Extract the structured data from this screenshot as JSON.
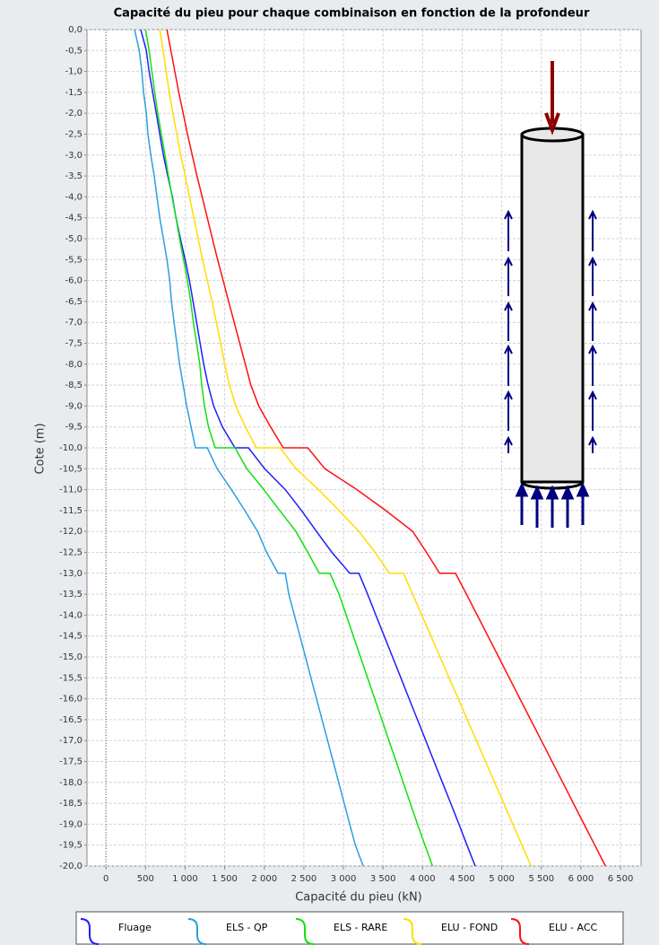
{
  "chart_data": {
    "type": "line",
    "title": "Capacité du pieu pour chaque combinaison en fonction de la profondeur",
    "xlabel": "Capacité du pieu (kN)",
    "ylabel": "Cote (m)",
    "y": [
      0,
      -0.5,
      -1,
      -1.5,
      -2,
      -2.5,
      -3,
      -3.5,
      -4,
      -4.5,
      -5,
      -5.5,
      -6,
      -6.5,
      -7,
      -7.5,
      -8,
      -8.5,
      -9,
      -9.5,
      -10,
      -10,
      -10.5,
      -11,
      -11.5,
      -12,
      -12.5,
      -13,
      -13,
      -13.5,
      -14,
      -14.5,
      -15,
      -15.5,
      -16,
      -16.5,
      -17,
      -17.5,
      -18,
      -18.5,
      -19,
      -19.5,
      -20
    ],
    "series": [
      {
        "name": "Fluage",
        "color": "#1f1fff",
        "values": [
          440,
          510,
          545,
          590,
          635,
          680,
          725,
          780,
          840,
          885,
          940,
          1000,
          1055,
          1100,
          1145,
          1190,
          1235,
          1290,
          1360,
          1470,
          1630,
          1800,
          2005,
          2265,
          2470,
          2660,
          2855,
          3080,
          3195,
          3305,
          3410,
          3515,
          3620,
          3725,
          3830,
          3935,
          4040,
          4145,
          4250,
          4355,
          4460,
          4560,
          4665
        ]
      },
      {
        "name": "ELS - QP",
        "color": "#2a9fe0",
        "values": [
          362,
          420,
          453,
          475,
          510,
          530,
          566,
          610,
          645,
          680,
          725,
          770,
          805,
          827,
          860,
          895,
          930,
          975,
          1020,
          1075,
          1130,
          1280,
          1405,
          1585,
          1755,
          1915,
          2030,
          2175,
          2265,
          2310,
          2380,
          2450,
          2520,
          2590,
          2660,
          2730,
          2800,
          2870,
          2940,
          3010,
          3080,
          3150,
          3250
        ]
      },
      {
        "name": "ELS - RARE",
        "color": "#11e011",
        "values": [
          500,
          545,
          580,
          615,
          655,
          700,
          745,
          790,
          835,
          885,
          930,
          980,
          1030,
          1070,
          1105,
          1145,
          1185,
          1210,
          1245,
          1295,
          1380,
          1630,
          1780,
          1995,
          2195,
          2400,
          2550,
          2695,
          2830,
          2945,
          3035,
          3125,
          3215,
          3305,
          3395,
          3485,
          3575,
          3665,
          3755,
          3845,
          3935,
          4030,
          4125
        ]
      },
      {
        "name": "ELU - FOND",
        "color": "#ffdd00",
        "values": [
          680,
          720,
          760,
          800,
          845,
          895,
          945,
          1000,
          1055,
          1110,
          1165,
          1220,
          1280,
          1340,
          1395,
          1450,
          1500,
          1560,
          1640,
          1760,
          1900,
          2200,
          2400,
          2685,
          2945,
          3195,
          3400,
          3580,
          3760,
          3875,
          3990,
          4105,
          4220,
          4335,
          4450,
          4565,
          4680,
          4795,
          4910,
          5025,
          5140,
          5255,
          5370
        ]
      },
      {
        "name": "ELU - ACC",
        "color": "#ff1010",
        "values": [
          770,
          820,
          870,
          920,
          975,
          1030,
          1090,
          1150,
          1215,
          1280,
          1345,
          1410,
          1480,
          1550,
          1620,
          1690,
          1760,
          1830,
          1930,
          2080,
          2240,
          2550,
          2765,
          3170,
          3535,
          3875,
          4050,
          4215,
          4415,
          4555,
          4690,
          4825,
          4960,
          5095,
          5230,
          5365,
          5500,
          5635,
          5770,
          5905,
          6040,
          6175,
          6310
        ]
      }
    ],
    "xlim": [
      -240,
      6760
    ],
    "ylim": [
      -20,
      0
    ],
    "xticks": [
      0,
      500,
      {
        "value": 1000,
        "label": "1 000"
      },
      {
        "value": 1500,
        "label": "1 500"
      },
      {
        "value": 2000,
        "label": "2 000"
      },
      {
        "value": 2500,
        "label": "2 500"
      },
      {
        "value": 3000,
        "label": "3 000"
      },
      {
        "value": 3500,
        "label": "3 500"
      },
      {
        "value": 4000,
        "label": "4 000"
      },
      {
        "value": 4500,
        "label": "4 500"
      },
      {
        "value": 5000,
        "label": "5 000"
      },
      {
        "value": 5500,
        "label": "5 500"
      },
      {
        "value": 6000,
        "label": "6 000"
      },
      {
        "value": 6500,
        "label": "6 500"
      }
    ],
    "yticks": [
      {
        "value": 0,
        "label": "0,0"
      },
      {
        "value": -0.5,
        "label": "-0,5"
      },
      {
        "value": -1,
        "label": "-1,0"
      },
      {
        "value": -1.5,
        "label": "-1,5"
      },
      {
        "value": -2,
        "label": "-2,0"
      },
      {
        "value": -2.5,
        "label": "-2,5"
      },
      {
        "value": -3,
        "label": "-3,0"
      },
      {
        "value": -3.5,
        "label": "-3,5"
      },
      {
        "value": -4,
        "label": "-4,0"
      },
      {
        "value": -4.5,
        "label": "-4,5"
      },
      {
        "value": -5,
        "label": "-5,0"
      },
      {
        "value": -5.5,
        "label": "-5,5"
      },
      {
        "value": -6,
        "label": "-6,0"
      },
      {
        "value": -6.5,
        "label": "-6,5"
      },
      {
        "value": -7,
        "label": "-7,0"
      },
      {
        "value": -7.5,
        "label": "-7,5"
      },
      {
        "value": -8,
        "label": "-8,0"
      },
      {
        "value": -8.5,
        "label": "-8,5"
      },
      {
        "value": -9,
        "label": "-9,0"
      },
      {
        "value": -9.5,
        "label": "-9,5"
      },
      {
        "value": -10,
        "label": "-10,0"
      },
      {
        "value": -10.5,
        "label": "-10,5"
      },
      {
        "value": -11,
        "label": "-11,0"
      },
      {
        "value": -11.5,
        "label": "-11,5"
      },
      {
        "value": -12,
        "label": "-12,0"
      },
      {
        "value": -12.5,
        "label": "-12,5"
      },
      {
        "value": -13,
        "label": "-13,0"
      },
      {
        "value": -13.5,
        "label": "-13,5"
      },
      {
        "value": -14,
        "label": "-14,0"
      },
      {
        "value": -14.5,
        "label": "-14,5"
      },
      {
        "value": -15,
        "label": "-15,0"
      },
      {
        "value": -15.5,
        "label": "-15,5"
      },
      {
        "value": -16,
        "label": "-16,0"
      },
      {
        "value": -16.5,
        "label": "-16,5"
      },
      {
        "value": -17,
        "label": "-17,0"
      },
      {
        "value": -17.5,
        "label": "-17,5"
      },
      {
        "value": -18,
        "label": "-18,0"
      },
      {
        "value": -18.5,
        "label": "-18,5"
      },
      {
        "value": -19,
        "label": "-19,0"
      },
      {
        "value": -19.5,
        "label": "-19,5"
      },
      {
        "value": -20,
        "label": "-20,0"
      }
    ],
    "grid": true
  }
}
